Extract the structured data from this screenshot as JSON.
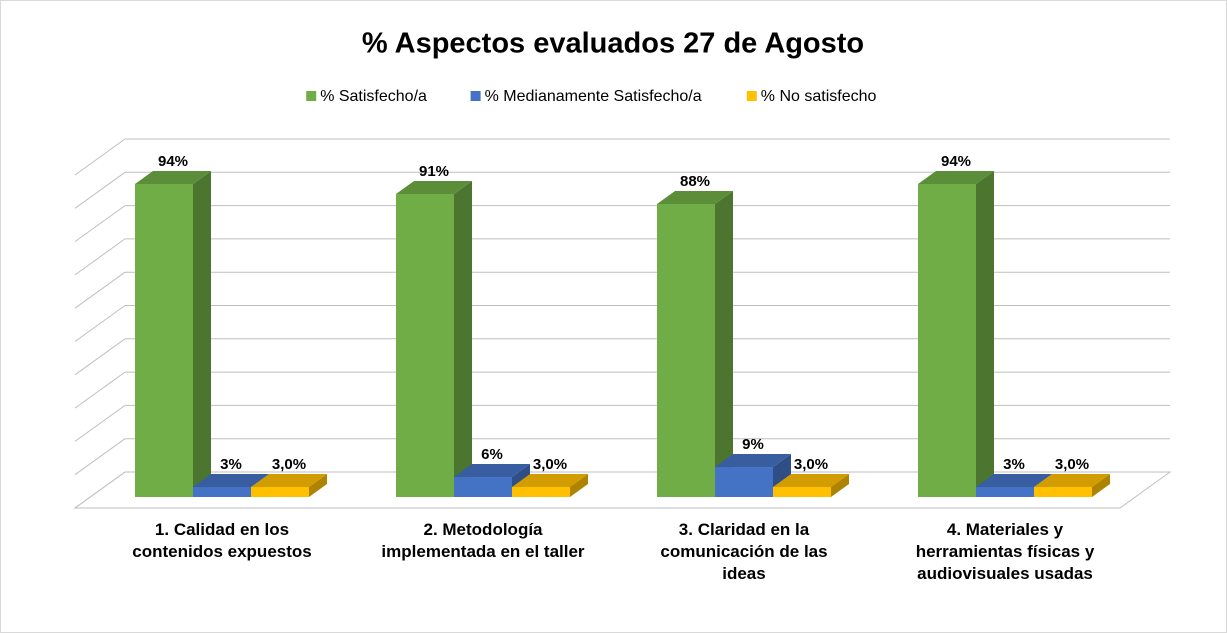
{
  "chart_data": {
    "type": "bar3d",
    "title": "% Aspectos evaluados 27 de Agosto",
    "categories": [
      "1. Calidad en los contenidos expuestos",
      "2. Metodología implementada en el taller",
      "3. Claridad en la comunicación de las ideas",
      "4. Materiales y herramientas físicas y audiovisuales usadas"
    ],
    "series": [
      {
        "name": "% Satisfecho/a",
        "color": "#70ad47",
        "values": [
          94,
          91,
          88,
          94
        ],
        "value_labels": [
          "94%",
          "91%",
          "88%",
          "94%"
        ]
      },
      {
        "name": "% Medianamente Satisfecho/a",
        "color": "#4472c4",
        "values": [
          3,
          6,
          9,
          3
        ],
        "value_labels": [
          "3%",
          "6%",
          "9%",
          "3%"
        ]
      },
      {
        "name": "% No satisfecho",
        "color": "#ffc000",
        "values": [
          3,
          3,
          3,
          3
        ],
        "value_labels": [
          "3,0%",
          "3,0%",
          "3,0%",
          "3,0%"
        ]
      }
    ],
    "ylim": [
      0,
      100
    ],
    "yticks": [
      0,
      10,
      20,
      30,
      40,
      50,
      60,
      70,
      80,
      90,
      100
    ],
    "grid": true,
    "legend": "top"
  }
}
